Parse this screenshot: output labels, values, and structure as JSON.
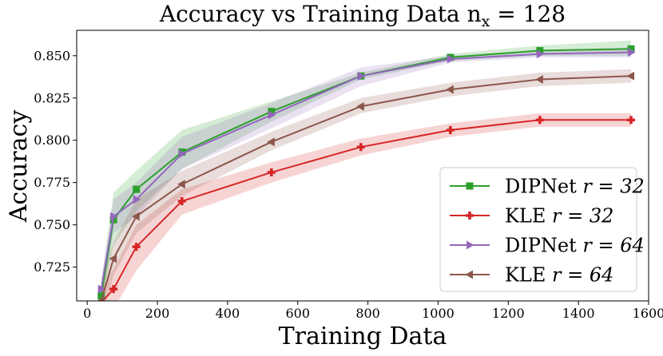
{
  "chart_data": {
    "type": "line",
    "title": "Accuracy vs Training Data n",
    "title_subscript": "x",
    "title_suffix": " = 128",
    "xlabel": "Training Data",
    "ylabel": "Accuracy",
    "xlim": [
      -30,
      1600
    ],
    "ylim": [
      0.705,
      0.865
    ],
    "xticks": [
      0,
      200,
      400,
      600,
      800,
      1000,
      1200,
      1400,
      1600
    ],
    "xtick_labels": [
      "0",
      "200",
      "400",
      "600",
      "800",
      "1000",
      "1200",
      "1400",
      "1600"
    ],
    "yticks": [
      0.725,
      0.75,
      0.775,
      0.8,
      0.825,
      0.85
    ],
    "ytick_labels": [
      "0.725",
      "0.750",
      "0.775",
      "0.800",
      "0.825",
      "0.850"
    ],
    "grid": false,
    "legend_position": "lower-right",
    "x": [
      40,
      75,
      140,
      270,
      525,
      780,
      1035,
      1290,
      1550
    ],
    "series": [
      {
        "name": "DIPNet",
        "r_label": "r = 32",
        "color": "#2ca02c",
        "marker": "square",
        "values": [
          0.708,
          0.753,
          0.771,
          0.793,
          0.817,
          0.838,
          0.849,
          0.853,
          0.854
        ],
        "lower": [
          0.703,
          0.738,
          0.758,
          0.783,
          0.811,
          0.836,
          0.847,
          0.85,
          0.85
        ],
        "upper": [
          0.715,
          0.769,
          0.782,
          0.806,
          0.823,
          0.84,
          0.851,
          0.856,
          0.859
        ]
      },
      {
        "name": "KLE",
        "r_label": "r = 32",
        "color": "#d62728",
        "marker": "plus",
        "values": [
          0.704,
          0.712,
          0.737,
          0.764,
          0.781,
          0.796,
          0.806,
          0.812,
          0.812
        ],
        "lower": [
          0.69,
          0.7,
          0.723,
          0.756,
          0.775,
          0.791,
          0.802,
          0.808,
          0.808
        ],
        "upper": [
          0.712,
          0.724,
          0.75,
          0.771,
          0.787,
          0.801,
          0.81,
          0.816,
          0.816
        ]
      },
      {
        "name": "DIPNet",
        "r_label": "r = 64",
        "color": "#9467bd",
        "marker": "triangle-right",
        "values": [
          0.712,
          0.755,
          0.765,
          0.792,
          0.815,
          0.838,
          0.848,
          0.851,
          0.852
        ],
        "lower": [
          0.705,
          0.745,
          0.755,
          0.783,
          0.807,
          0.832,
          0.846,
          0.849,
          0.849
        ],
        "upper": [
          0.718,
          0.765,
          0.775,
          0.802,
          0.822,
          0.843,
          0.85,
          0.853,
          0.855
        ]
      },
      {
        "name": "KLE",
        "r_label": "r = 64",
        "color": "#8c564b",
        "marker": "triangle-left",
        "values": [
          0.705,
          0.73,
          0.755,
          0.774,
          0.799,
          0.82,
          0.83,
          0.836,
          0.838
        ],
        "lower": [
          0.695,
          0.72,
          0.745,
          0.767,
          0.794,
          0.816,
          0.826,
          0.832,
          0.834
        ],
        "upper": [
          0.715,
          0.74,
          0.765,
          0.782,
          0.805,
          0.825,
          0.834,
          0.84,
          0.842
        ]
      }
    ]
  }
}
